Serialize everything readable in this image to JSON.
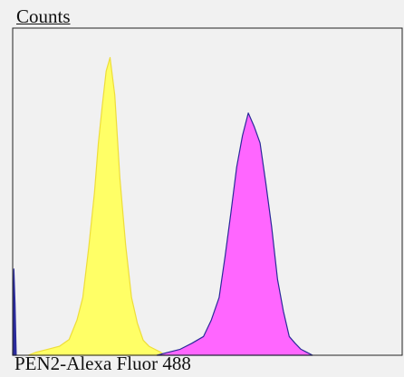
{
  "chart_data": {
    "type": "area",
    "title": "",
    "ylabel": "Counts",
    "xlabel": "PEN2-Alexa Fluor 488",
    "xlim": [
      0,
      1000
    ],
    "ylim": [
      0,
      100
    ],
    "grid": false,
    "series": [
      {
        "fill_color": "#ffff66",
        "stroke_color": "#eedd3a",
        "x": [
          40,
          60,
          90,
          120,
          145,
          165,
          180,
          195,
          210,
          220,
          230,
          240,
          250,
          262,
          275,
          290,
          305,
          320,
          335,
          350,
          365,
          380,
          390
        ],
        "values": [
          0,
          1,
          2,
          3,
          6,
          11,
          20,
          35,
          55,
          70,
          84,
          94,
          100,
          86,
          60,
          36,
          20,
          10,
          5,
          3,
          2,
          1,
          0
        ]
      },
      {
        "fill_color": "#ff66ff",
        "stroke_color": "#2a2a9a",
        "x": [
          370,
          400,
          430,
          460,
          490,
          510,
          530,
          545,
          560,
          575,
          590,
          605,
          620,
          635,
          650,
          665,
          680,
          695,
          710,
          725,
          740,
          755,
          770
        ],
        "values": [
          0,
          1,
          2,
          4,
          7,
          11,
          20,
          32,
          48,
          62,
          74,
          80,
          77,
          70,
          58,
          42,
          26,
          14,
          7,
          4,
          2,
          1,
          0
        ]
      },
      {
        "fill_color": "#2a2a9a",
        "stroke_color": "#2a2a9a",
        "x": [
          0,
          3,
          6,
          9
        ],
        "values": [
          0,
          28,
          18,
          0
        ]
      }
    ]
  }
}
